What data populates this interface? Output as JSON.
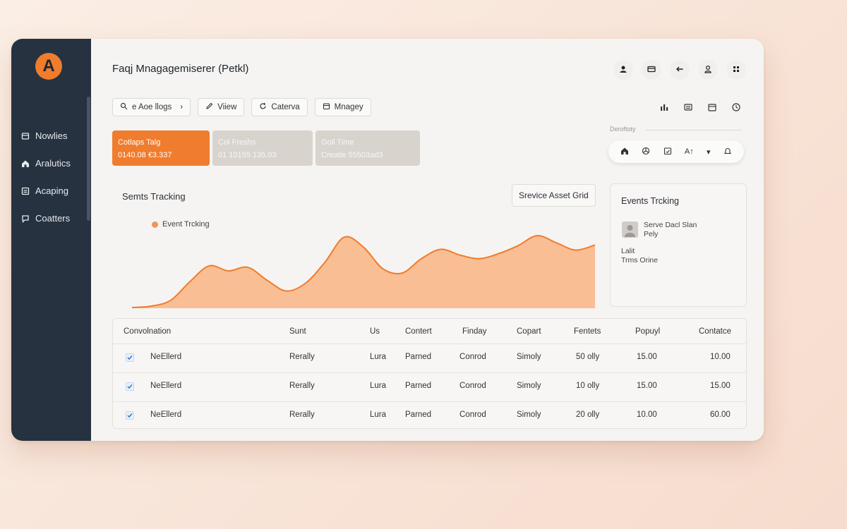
{
  "app": {
    "title": "Faqj Mnagagemiserer (Petkl)",
    "logo_letter": "A"
  },
  "sidebar": {
    "items": [
      {
        "label": "Nowlies",
        "icon": "box-icon"
      },
      {
        "label": "Aralutics",
        "icon": "home-icon"
      },
      {
        "label": "Acaping",
        "icon": "inbox-icon"
      },
      {
        "label": "Coatters",
        "icon": "chat-icon"
      }
    ]
  },
  "header": {
    "icons": [
      "user-icon",
      "card-icon",
      "back-arrow-icon",
      "profile-icon",
      "grid-icon"
    ]
  },
  "toolbar": {
    "buttons": [
      {
        "label": "e Aoe llogs",
        "icon": "search-icon"
      },
      {
        "label": "Viiew",
        "icon": "pencil-icon"
      },
      {
        "label": "Caterva",
        "icon": "refresh-icon"
      },
      {
        "label": "Mnagey",
        "icon": "box-icon"
      }
    ],
    "right_icons": [
      "bar-chart-icon",
      "list-icon",
      "calendar-icon",
      "clock-icon"
    ]
  },
  "cards": [
    {
      "title": "Cotlaps Talg",
      "value": "0140.08 €3.337"
    },
    {
      "title": "Col Freshs",
      "value": "01 10155 135.03"
    },
    {
      "title": "Goll Time",
      "value": "Creatie 55503ad3"
    }
  ],
  "right_panel": {
    "label": "Deroftoty",
    "pill": [
      "home-icon",
      "fan-icon",
      "calendar-check-icon",
      "A↑",
      "dropdown-icon",
      "bell-icon"
    ]
  },
  "chart_section": {
    "title": "Semts Tracking",
    "asset_button": "Srevice Asset Grid",
    "accent": "#f07c2d",
    "fill": "#f9be94"
  },
  "chart_data": {
    "type": "area",
    "title": "",
    "xlabel": "",
    "ylabel": "",
    "series": [
      {
        "name": "Event Trcking",
        "values": [
          0.0,
          0.02,
          0.1,
          0.36,
          0.58,
          0.51,
          0.56,
          0.38,
          0.23,
          0.34,
          0.63,
          0.98,
          0.84,
          0.54,
          0.48,
          0.68,
          0.81,
          0.73,
          0.68,
          0.75,
          0.86,
          1.0,
          0.9,
          0.8,
          0.87
        ]
      }
    ],
    "ylim": [
      0,
      1.08
    ],
    "grid": false,
    "legend": "top-left"
  },
  "events_panel": {
    "title": "Events Trcking",
    "name_line1": "Serve Dacl Slan",
    "name_line2": "Pely",
    "last_line1": "Lalit",
    "last_line2": "Trms Orine"
  },
  "table": {
    "columns": [
      "Convolnation",
      "Sunt",
      "Us",
      "Contert",
      "Finday",
      "Copart",
      "Fentets",
      "Popuyl",
      "Contatce"
    ],
    "rows": [
      {
        "checked": true,
        "cells": [
          "NeEllerd",
          "Rerally",
          "Lura",
          "Parned",
          "Conrod",
          "Simoly",
          "50 olly",
          "15.00",
          "10.00"
        ]
      },
      {
        "checked": true,
        "cells": [
          "NeEllerd",
          "Rerally",
          "Lura",
          "Parned",
          "Conrod",
          "Simoly",
          "10 olly",
          "15.00",
          "15.00"
        ]
      },
      {
        "checked": true,
        "cells": [
          "NeEllerd",
          "Rerally",
          "Lura",
          "Parned",
          "Conrod",
          "Simoly",
          "20 olly",
          "10.00",
          "60.00"
        ]
      }
    ]
  }
}
